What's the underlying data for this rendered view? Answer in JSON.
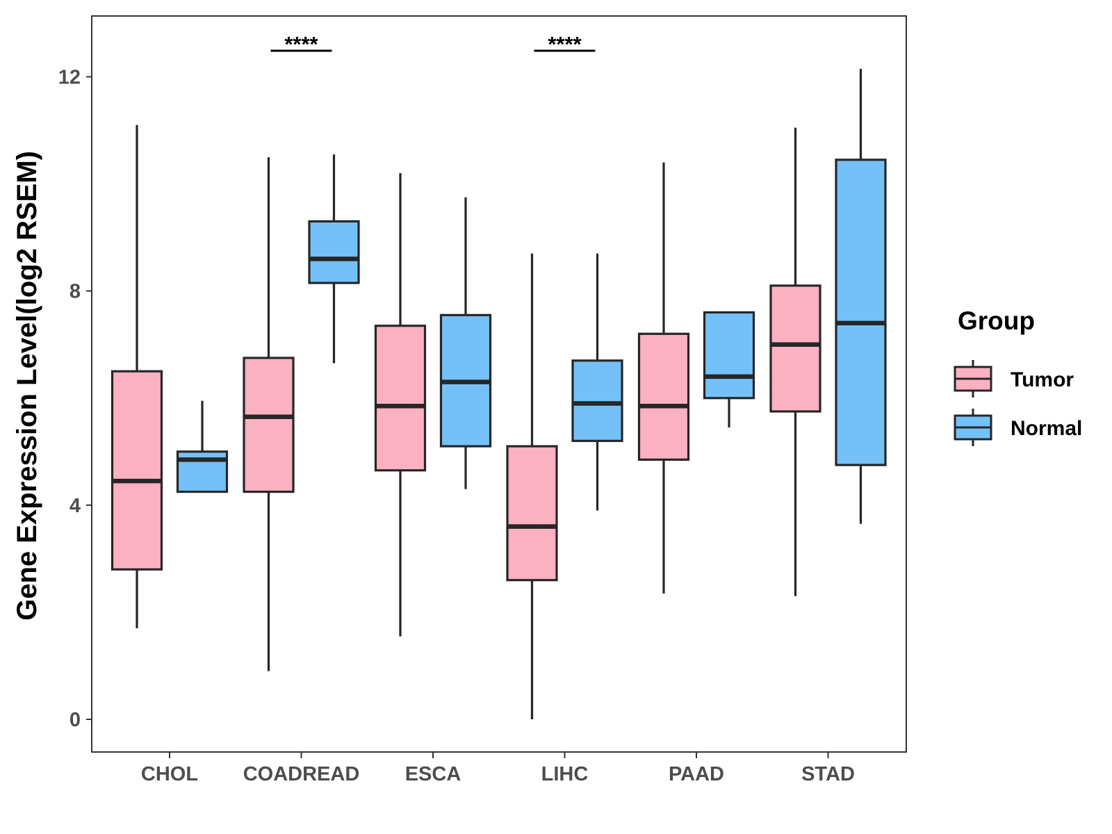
{
  "chart_data": {
    "type": "boxplot",
    "title": "",
    "xlabel": "",
    "ylabel": "Gene Expression Level(log2 RSEM)",
    "ylim": [
      -0.6,
      13.2
    ],
    "yticks": [
      0,
      4,
      8,
      12
    ],
    "grid": false,
    "legend": {
      "title": "Group",
      "position": "right"
    },
    "categories": [
      "CHOL",
      "COADREAD",
      "ESCA",
      "LIHC",
      "PAAD",
      "STAD"
    ],
    "series": [
      {
        "name": "Tumor",
        "color": "#fbb1c2",
        "boxes": [
          {
            "min": 1.7,
            "q1": 2.8,
            "median": 4.45,
            "q3": 6.5,
            "max": 11.1
          },
          {
            "min": 0.9,
            "q1": 4.25,
            "median": 5.65,
            "q3": 6.75,
            "max": 10.5
          },
          {
            "min": 1.55,
            "q1": 4.65,
            "median": 5.85,
            "q3": 7.35,
            "max": 10.2
          },
          {
            "min": 0.0,
            "q1": 2.6,
            "median": 3.6,
            "q3": 5.1,
            "max": 8.7
          },
          {
            "min": 2.35,
            "q1": 4.85,
            "median": 5.85,
            "q3": 7.2,
            "max": 10.4
          },
          {
            "min": 2.3,
            "q1": 5.75,
            "median": 7.0,
            "q3": 8.1,
            "max": 11.05
          }
        ]
      },
      {
        "name": "Normal",
        "color": "#74c1f9",
        "boxes": [
          {
            "min": 4.25,
            "q1": 4.25,
            "median": 4.85,
            "q3": 5.0,
            "max": 5.95
          },
          {
            "min": 6.65,
            "q1": 8.15,
            "median": 8.6,
            "q3": 9.3,
            "max": 10.55
          },
          {
            "min": 4.3,
            "q1": 5.1,
            "median": 6.3,
            "q3": 7.55,
            "max": 9.75
          },
          {
            "min": 3.9,
            "q1": 5.2,
            "median": 5.9,
            "q3": 6.7,
            "max": 8.7
          },
          {
            "min": 5.45,
            "q1": 6.0,
            "median": 6.4,
            "q3": 7.6,
            "max": 7.6
          },
          {
            "min": 3.65,
            "q1": 4.75,
            "median": 7.4,
            "q3": 10.45,
            "max": 12.15
          }
        ]
      }
    ],
    "annotations": [
      {
        "category": "COADREAD",
        "label": "****",
        "y": 12.5
      },
      {
        "category": "LIHC",
        "label": "****",
        "y": 12.5
      }
    ]
  }
}
